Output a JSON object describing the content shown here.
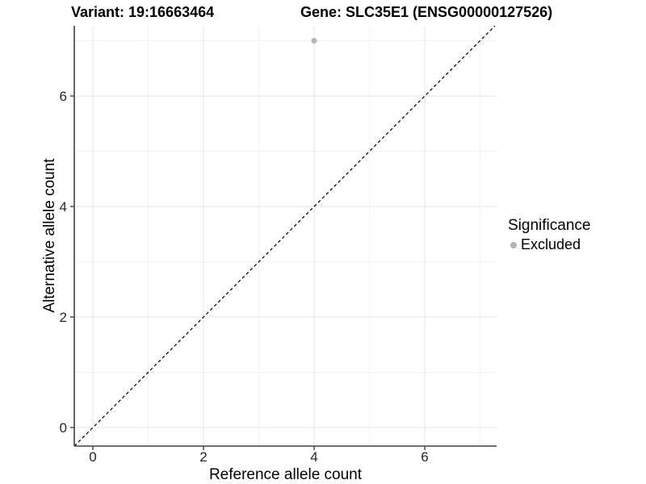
{
  "chart_data": {
    "type": "scatter",
    "title_left": "Variant: 19:16663464",
    "title_right": "Gene: SLC35E1 (ENSG00000127526)",
    "xlabel": "Reference allele count",
    "ylabel": "Alternative allele count",
    "xlim": [
      -0.34,
      7.3
    ],
    "ylim": [
      -0.34,
      7.3
    ],
    "x_ticks": [
      0,
      2,
      4,
      6
    ],
    "y_ticks": [
      0,
      2,
      4,
      6
    ],
    "x_minor_ticks": [
      1,
      3,
      5,
      7
    ],
    "y_minor_ticks": [
      1,
      3,
      5,
      7
    ],
    "grid": "major-and-minor",
    "identity_line": {
      "type": "y=x",
      "style": "dashed",
      "color": "#000000"
    },
    "series": [
      {
        "name": "Excluded",
        "color": "#b4b4b4",
        "points": [
          {
            "x": 4,
            "y": 7
          }
        ]
      }
    ],
    "legend": {
      "title": "Significance",
      "position": "right",
      "entries": [
        {
          "label": "Excluded",
          "color": "#b4b4b4"
        }
      ]
    },
    "colors": {
      "major_grid": "#e4e4e4",
      "minor_grid": "#f2f2f2",
      "axis_line": "#404040",
      "tick_text": "#262626",
      "title_text": "#000000"
    }
  }
}
